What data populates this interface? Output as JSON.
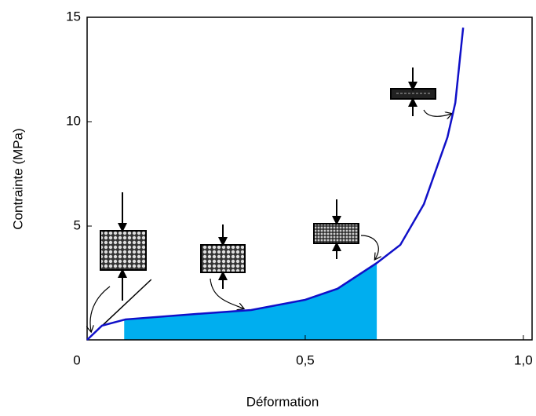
{
  "chart_data": {
    "type": "line",
    "xlabel": "Déformation",
    "ylabel": "Contrainte (MPa)",
    "x": [
      0,
      0.034,
      0.088,
      0.25,
      0.376,
      0.5,
      0.574,
      0.664,
      0.718,
      0.772,
      0.826,
      0.844,
      0.862
    ],
    "series": [
      {
        "color": "#1010c8",
        "values": [
          -0.45,
          0.23,
          0.53,
          0.79,
          0.98,
          1.47,
          2.0,
          3.23,
          4.1,
          6.05,
          9.25,
          10.9,
          14.5
        ]
      }
    ],
    "fill_range": [
      0.085,
      0.664
    ],
    "fill_color": "#00aeef",
    "tangent": {
      "x": [
        0,
        0.147
      ],
      "y": [
        -0.45,
        2.44
      ]
    },
    "xlim": [
      0,
      1.02
    ],
    "ylim": [
      -0.45,
      15
    ],
    "xticks": [
      0,
      {
        "value": 0.5,
        "label": "0,5"
      },
      {
        "value": 1.0,
        "label": "1,0"
      }
    ],
    "yticks": [
      5,
      10,
      15
    ]
  }
}
